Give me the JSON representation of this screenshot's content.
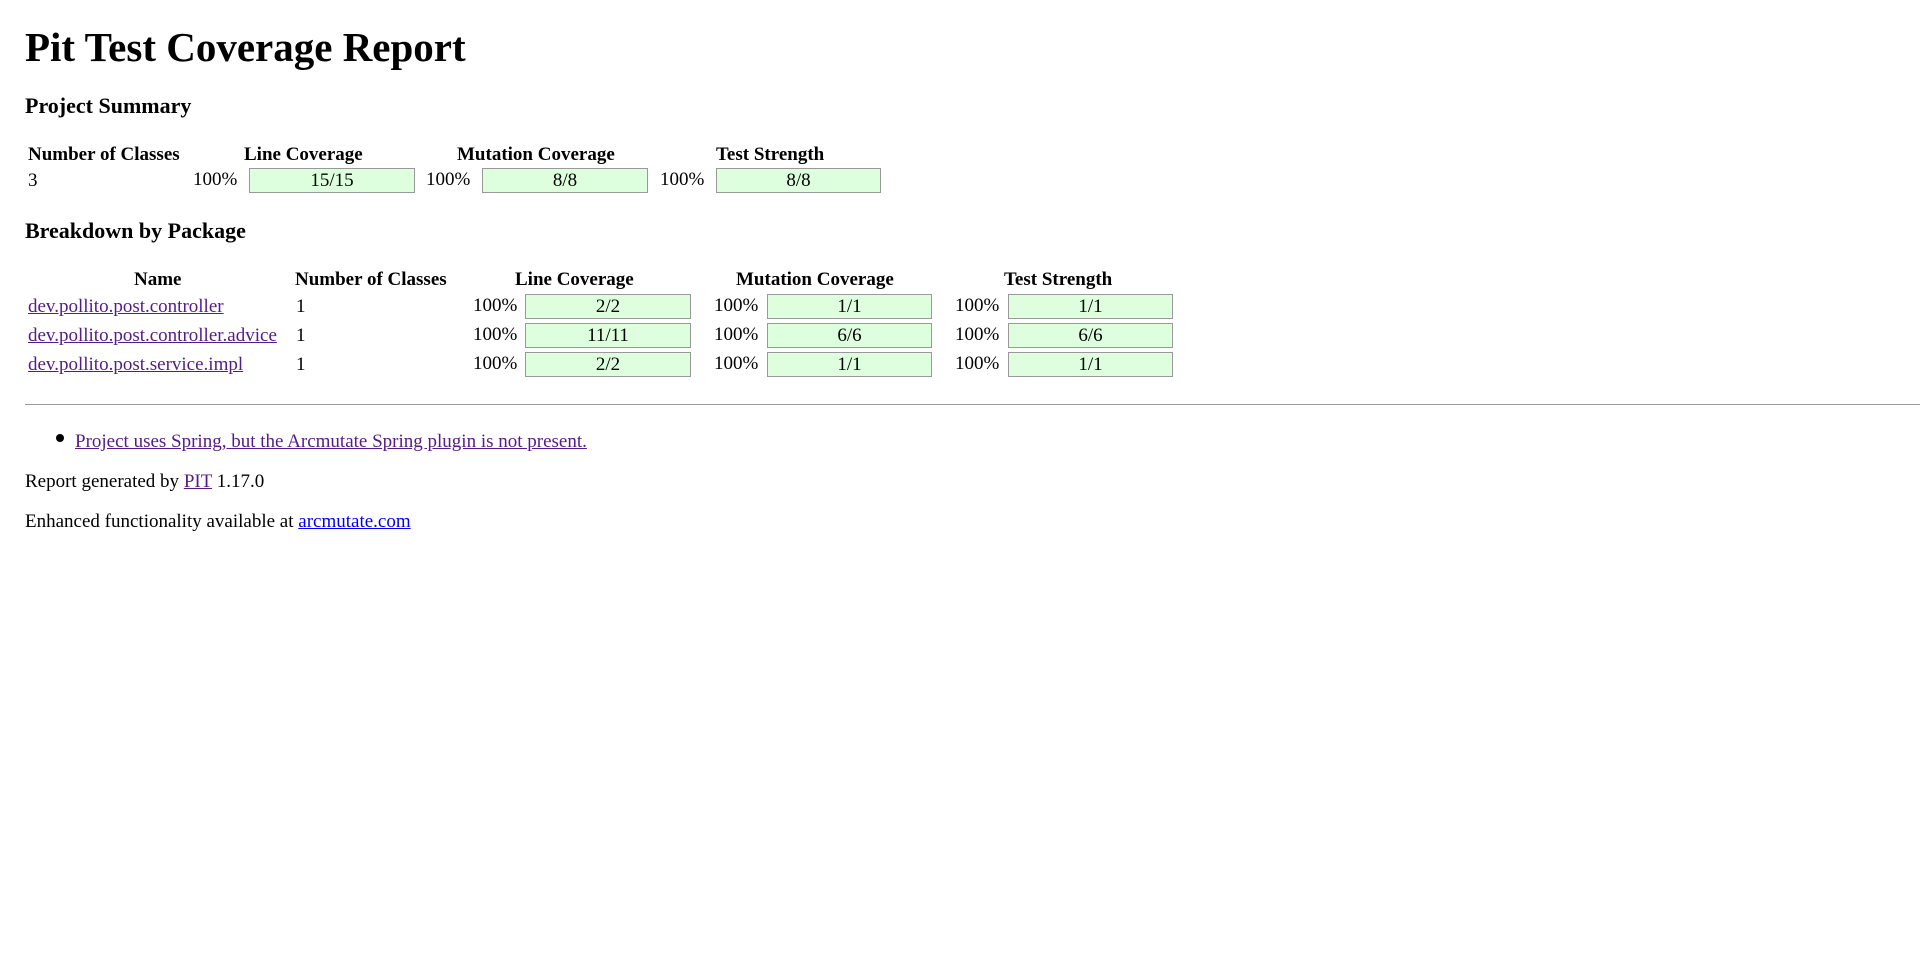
{
  "page": {
    "title": "Pit Test Coverage Report"
  },
  "summary": {
    "heading": "Project Summary",
    "headers": {
      "classes": "Number of Classes",
      "line": "Line Coverage",
      "mutation": "Mutation Coverage",
      "strength": "Test Strength"
    },
    "row": {
      "classes": "3",
      "line_percent": "100%",
      "line_ratio": "15/15",
      "mutation_percent": "100%",
      "mutation_ratio": "8/8",
      "strength_percent": "100%",
      "strength_ratio": "8/8"
    }
  },
  "breakdown": {
    "heading": "Breakdown by Package",
    "headers": {
      "name": "Name",
      "classes": "Number of Classes",
      "line": "Line Coverage",
      "mutation": "Mutation Coverage",
      "strength": "Test Strength"
    },
    "rows": [
      {
        "name": "dev.pollito.post.controller",
        "classes": "1",
        "line_percent": "100%",
        "line_ratio": "2/2",
        "mutation_percent": "100%",
        "mutation_ratio": "1/1",
        "strength_percent": "100%",
        "strength_ratio": "1/1"
      },
      {
        "name": "dev.pollito.post.controller.advice",
        "classes": "1",
        "line_percent": "100%",
        "line_ratio": "11/11",
        "mutation_percent": "100%",
        "mutation_ratio": "6/6",
        "strength_percent": "100%",
        "strength_ratio": "6/6"
      },
      {
        "name": "dev.pollito.post.service.impl",
        "classes": "1",
        "line_percent": "100%",
        "line_ratio": "2/2",
        "mutation_percent": "100%",
        "mutation_ratio": "1/1",
        "strength_percent": "100%",
        "strength_ratio": "1/1"
      }
    ]
  },
  "notes": {
    "items": [
      "Project uses Spring, but the Arcmutate Spring plugin is not present."
    ]
  },
  "footer": {
    "generated_prefix": "Report generated by",
    "pit_link": "PIT",
    "version": "1.17.0",
    "enhanced_prefix": "Enhanced functionality available at",
    "arcmutate_link": "arcmutate.com"
  },
  "colors": {
    "coverage_fill": "#ddffdd",
    "coverage_border": "#999999",
    "visited_link": "#551a8b",
    "unvisited_link": "#0000ee"
  }
}
